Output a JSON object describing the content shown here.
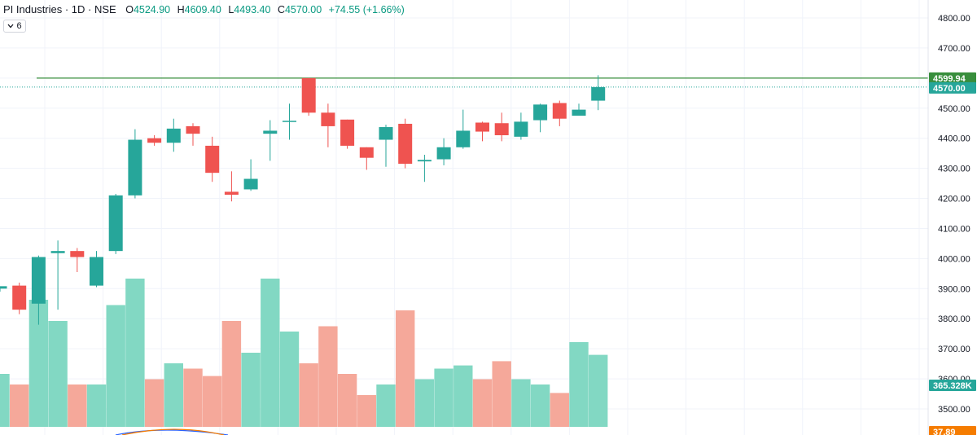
{
  "header": {
    "title": "PI Industries · 1D · NSE",
    "open_label": "O",
    "open": "4524.90",
    "high_label": "H",
    "high": "4609.40",
    "low_label": "L",
    "low": "4493.40",
    "close_label": "C",
    "close": "4570.00",
    "change": "+74.55 (+1.66%)"
  },
  "indicators_toggle": {
    "chevron": "chevron-down-icon",
    "count": "6"
  },
  "price_labels": {
    "resistance": "4599.94",
    "last_price": "4570.00",
    "volume_last": "365.328K",
    "indicator_last": "37.89"
  },
  "colors": {
    "up": "#089981",
    "down": "#f23645",
    "up_candle": "#26a69a",
    "down_candle": "#ef5350",
    "vol_up": "#82d8c3",
    "vol_down": "#f5a89a",
    "resistance": "#388e3c",
    "indicator": "#f57c00",
    "axis_text": "#131722"
  },
  "chart_data": {
    "type": "candlestick",
    "symbol": "PI Industries",
    "interval": "1D",
    "exchange": "NSE",
    "yaxis_ticks": [
      3500,
      3600,
      3700,
      3800,
      3900,
      4000,
      4100,
      4200,
      4300,
      4400,
      4500,
      4600,
      4700,
      4800
    ],
    "ylim": [
      3450,
      4840
    ],
    "resistance_level": 4599.94,
    "last_price": 4570.0,
    "candles": [
      {
        "o": 3900,
        "h": 3905,
        "l": 3890,
        "c": 3908
      },
      {
        "o": 3910,
        "h": 3920,
        "l": 3815,
        "c": 3830
      },
      {
        "o": 3850,
        "h": 4010,
        "l": 3780,
        "c": 4005
      },
      {
        "o": 4018,
        "h": 4060,
        "l": 3830,
        "c": 4025
      },
      {
        "o": 4025,
        "h": 4035,
        "l": 3955,
        "c": 4005
      },
      {
        "o": 3910,
        "h": 4025,
        "l": 3905,
        "c": 4005
      },
      {
        "o": 4025,
        "h": 4215,
        "l": 4015,
        "c": 4210
      },
      {
        "o": 4210,
        "h": 4430,
        "l": 4200,
        "c": 4395
      },
      {
        "o": 4400,
        "h": 4410,
        "l": 4375,
        "c": 4385
      },
      {
        "o": 4385,
        "h": 4465,
        "l": 4355,
        "c": 4432
      },
      {
        "o": 4440,
        "h": 4450,
        "l": 4375,
        "c": 4415
      },
      {
        "o": 4375,
        "h": 4405,
        "l": 4255,
        "c": 4285
      },
      {
        "o": 4222,
        "h": 4290,
        "l": 4190,
        "c": 4212
      },
      {
        "o": 4230,
        "h": 4330,
        "l": 4225,
        "c": 4265
      },
      {
        "o": 4415,
        "h": 4460,
        "l": 4325,
        "c": 4425
      },
      {
        "o": 4458,
        "h": 4515,
        "l": 4395,
        "c": 4458
      },
      {
        "o": 4600,
        "h": 4600,
        "l": 4475,
        "c": 4485
      },
      {
        "o": 4485,
        "h": 4515,
        "l": 4370,
        "c": 4440
      },
      {
        "o": 4462,
        "h": 4462,
        "l": 4365,
        "c": 4375
      },
      {
        "o": 4370,
        "h": 4370,
        "l": 4295,
        "c": 4335
      },
      {
        "o": 4395,
        "h": 4445,
        "l": 4305,
        "c": 4437
      },
      {
        "o": 4448,
        "h": 4465,
        "l": 4300,
        "c": 4315
      },
      {
        "o": 4323,
        "h": 4345,
        "l": 4255,
        "c": 4328
      },
      {
        "o": 4330,
        "h": 4400,
        "l": 4310,
        "c": 4370
      },
      {
        "o": 4370,
        "h": 4495,
        "l": 4365,
        "c": 4425
      },
      {
        "o": 4452,
        "h": 4455,
        "l": 4390,
        "c": 4422
      },
      {
        "o": 4450,
        "h": 4485,
        "l": 4390,
        "c": 4410
      },
      {
        "o": 4405,
        "h": 4485,
        "l": 4395,
        "c": 4455
      },
      {
        "o": 4460,
        "h": 4515,
        "l": 4420,
        "c": 4512
      },
      {
        "o": 4517,
        "h": 4525,
        "l": 4440,
        "c": 4465
      },
      {
        "o": 4475,
        "h": 4515,
        "l": 4475,
        "c": 4495
      },
      {
        "o": 4524.9,
        "h": 4609.4,
        "l": 4493.4,
        "c": 4570
      }
    ],
    "volume_relative": [
      0.5,
      0.4,
      1.2,
      1.0,
      0.4,
      0.4,
      1.15,
      1.4,
      0.45,
      0.6,
      0.55,
      0.48,
      1.0,
      0.7,
      1.4,
      0.9,
      0.6,
      0.95,
      0.5,
      0.3,
      0.4,
      1.1,
      0.45,
      0.55,
      0.58,
      0.45,
      0.62,
      0.45,
      0.4,
      0.32,
      0.8,
      0.68
    ]
  }
}
